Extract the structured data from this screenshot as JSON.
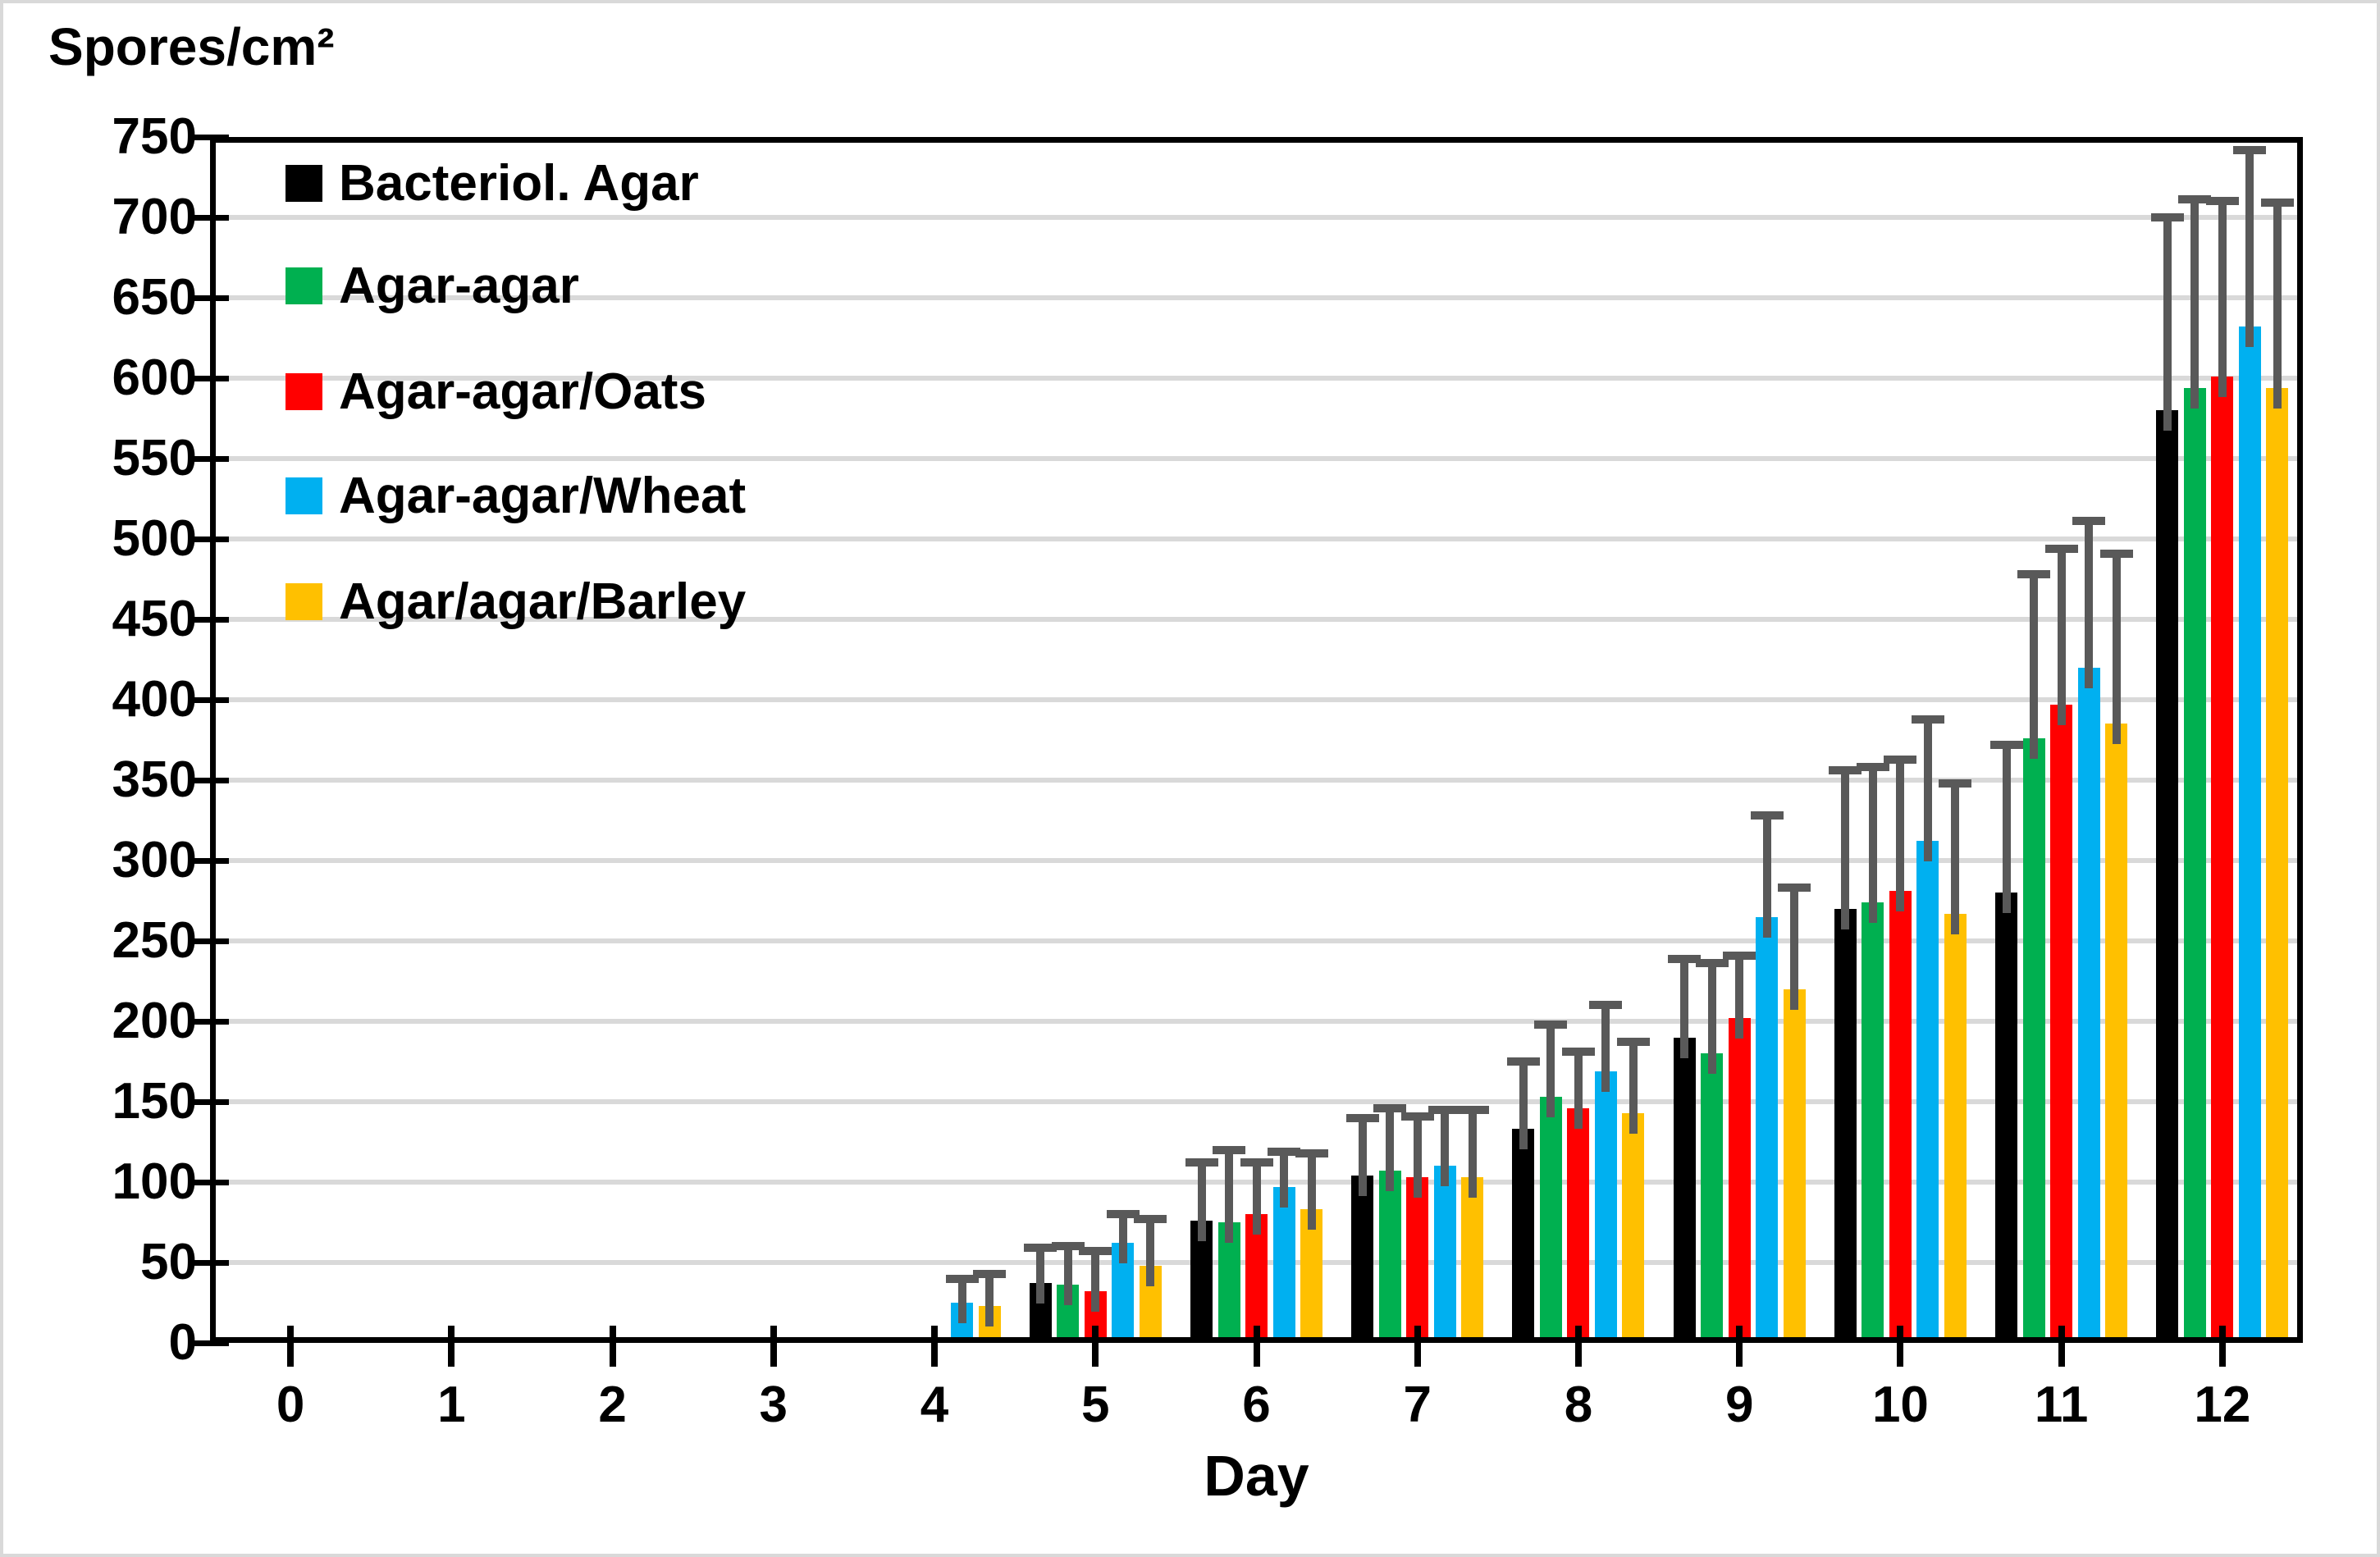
{
  "chart_data": {
    "type": "bar",
    "y_axis_title": "Spores/cm²",
    "xlabel": "Day",
    "categories": [
      "0",
      "1",
      "2",
      "3",
      "4",
      "5",
      "6",
      "7",
      "8",
      "9",
      "10",
      "11",
      "12"
    ],
    "ylim": [
      0,
      750
    ],
    "ytick_step": 50,
    "yticks": [
      0,
      50,
      100,
      150,
      200,
      250,
      300,
      350,
      400,
      450,
      500,
      550,
      600,
      650,
      700,
      750
    ],
    "grid": true,
    "gridline_color": "#d9d9d9",
    "axis_color": "#000000",
    "error_bar_color": "#595959",
    "legend_position": "top-left-inside",
    "series": [
      {
        "name": "Bacteriol. Agar",
        "color": "#000000",
        "values": [
          null,
          null,
          null,
          null,
          null,
          37,
          76,
          104,
          133,
          190,
          270,
          280,
          580
        ],
        "errors": [
          null,
          null,
          null,
          null,
          null,
          22,
          36,
          36,
          42,
          49,
          86,
          92,
          120
        ]
      },
      {
        "name": "Agar-agar",
        "color": "#00b050",
        "values": [
          null,
          null,
          null,
          null,
          null,
          36,
          75,
          107,
          153,
          180,
          274,
          376,
          594
        ],
        "errors": [
          null,
          null,
          null,
          null,
          null,
          24,
          45,
          39,
          45,
          56,
          84,
          102,
          117
        ]
      },
      {
        "name": "Agar-agar/Oats",
        "color": "#ff0000",
        "values": [
          null,
          null,
          null,
          null,
          null,
          32,
          80,
          103,
          146,
          202,
          281,
          397,
          601
        ],
        "errors": [
          null,
          null,
          null,
          null,
          null,
          25,
          32,
          38,
          35,
          39,
          82,
          97,
          109
        ]
      },
      {
        "name": "Agar-agar/Wheat",
        "color": "#00b0f0",
        "values": [
          null,
          null,
          null,
          null,
          25,
          62,
          97,
          110,
          169,
          265,
          312,
          420,
          632
        ],
        "errors": [
          null,
          null,
          null,
          null,
          15,
          18,
          22,
          35,
          41,
          63,
          76,
          91,
          110
        ]
      },
      {
        "name": "Agar/agar/Barley",
        "color": "#ffc000",
        "values": [
          null,
          null,
          null,
          null,
          23,
          48,
          83,
          103,
          143,
          220,
          267,
          385,
          594
        ],
        "errors": [
          null,
          null,
          null,
          null,
          20,
          29,
          35,
          42,
          44,
          63,
          81,
          106,
          115
        ]
      }
    ]
  }
}
